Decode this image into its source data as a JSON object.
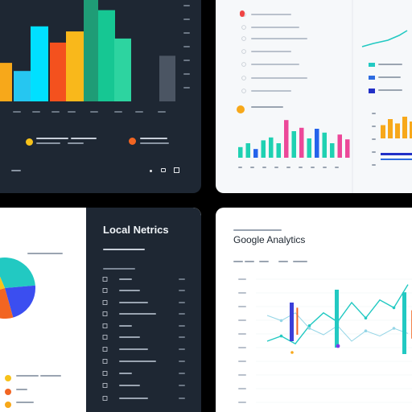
{
  "panels": {
    "top_left": {
      "chart_data": {
        "type": "bar",
        "categories": [
          "",
          "",
          "",
          "",
          "",
          "",
          "",
          "",
          ""
        ],
        "values": [
          38,
          30,
          74,
          58,
          69,
          100,
          90,
          62,
          45
        ],
        "colors": [
          "#f7a81a",
          "#26c6f0",
          "#00e0ff",
          "#f4511e",
          "#f9b81b",
          "#1f9c76",
          "#16c793",
          "#2dd4a0",
          "#4b5563"
        ],
        "ylim": [
          0,
          100
        ]
      },
      "legend": [
        {
          "label": "",
          "color": "#f7c21a"
        },
        {
          "label": "",
          "color": "#f26522"
        }
      ],
      "icons": [
        "dot-icon",
        "camera-icon",
        "expand-icon"
      ]
    },
    "top_right": {
      "list_accent": "#ef4444",
      "list_items": [
        "",
        "",
        "",
        "",
        "",
        "",
        ""
      ],
      "legend": [
        {
          "label": "",
          "color": "#22c9c2"
        },
        {
          "label": "",
          "color": "#2d6be0"
        },
        {
          "label": "",
          "color": "#2230c7"
        }
      ],
      "chart_data": {
        "type": "bar",
        "categories": [
          "",
          "",
          "",
          "",
          "",
          "",
          "",
          "",
          "",
          "",
          "",
          "",
          "",
          "",
          ""
        ],
        "values": [
          22,
          30,
          18,
          36,
          42,
          30,
          78,
          55,
          62,
          40,
          60,
          52,
          30,
          48,
          38
        ],
        "colors": [
          "#1fd1b2",
          "#1fd1b2",
          "#2563eb",
          "#1fd1b2",
          "#1fd1b2",
          "#1fd1b2",
          "#ec4899",
          "#1fd1b2",
          "#ec4899",
          "#1fd1b2",
          "#2563eb",
          "#1fd1b2",
          "#1fd1b2",
          "#ec4899",
          "#ec4899"
        ],
        "ylim": [
          0,
          100
        ]
      },
      "side_chart": {
        "type": "bar",
        "values": [
          55,
          80,
          62,
          90,
          70
        ],
        "colors": [
          "#f7a81a",
          "#f7a81a",
          "#f7a81a",
          "#f7a81a",
          "#f7a81a"
        ],
        "ylim": [
          0,
          100
        ]
      }
    },
    "bottom_left": {
      "title": "Local Netrics",
      "subtitle": "",
      "pie": {
        "type": "pie",
        "values": [
          30,
          22,
          25,
          23
        ],
        "colors": [
          "#22c9c2",
          "#3b4ef0",
          "#f26522",
          "#f7c21a"
        ]
      },
      "legend": [
        {
          "label": "",
          "color": "#f7c21a"
        },
        {
          "label": "",
          "color": "#f26522"
        },
        {
          "label": "",
          "color": "#f7a81a"
        }
      ],
      "rows": [
        "",
        "",
        "",
        "",
        "",
        "",
        "",
        "",
        "",
        "",
        ""
      ]
    },
    "bottom_right": {
      "title": "Google Analytics",
      "line_chart": {
        "type": "line",
        "series": [
          {
            "color": "#22c9c2",
            "values": [
              40,
              44,
              38,
              52,
              62,
              55,
              70,
              58,
              72,
              66,
              84
            ]
          },
          {
            "color": "#94d5e6",
            "values": [
              60,
              56,
              62,
              50,
              45,
              52,
              40,
              48,
              44,
              50,
              46
            ]
          }
        ],
        "ylim": [
          0,
          100
        ]
      },
      "candles": [
        {
          "index": 1,
          "low": 40,
          "high": 70,
          "color": "#3b3fd9"
        },
        {
          "index": 3,
          "low": 35,
          "high": 80,
          "color": "#22c9c2"
        },
        {
          "index": 6,
          "low": 30,
          "high": 78,
          "color": "#22c9c2"
        },
        {
          "index": 1.3,
          "low": 45,
          "high": 66,
          "color": "#f26522"
        },
        {
          "index": 6.4,
          "low": 42,
          "high": 64,
          "color": "#f26522"
        }
      ]
    }
  }
}
